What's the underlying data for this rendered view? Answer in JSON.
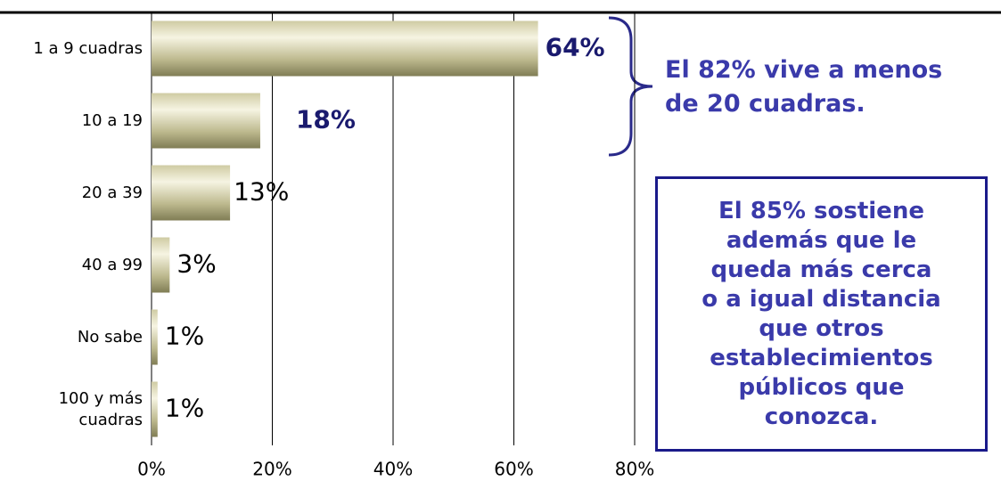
{
  "chart_data": {
    "type": "bar",
    "orientation": "horizontal",
    "categories": [
      "1 a 9 cuadras",
      "10 a 19",
      "20 a 39",
      "40 a 99",
      "No sabe",
      "100 y más cuadras"
    ],
    "values": [
      64,
      18,
      13,
      3,
      1,
      1
    ],
    "value_labels": [
      "64%",
      "18%",
      "13%",
      "3%",
      "1%",
      "1%"
    ],
    "xlim": [
      0,
      80
    ],
    "xticks": [
      {
        "value": 0,
        "label": "0%"
      },
      {
        "value": 20,
        "label": "20%"
      },
      {
        "value": 40,
        "label": "40%"
      },
      {
        "value": 60,
        "label": "60%"
      },
      {
        "value": 80,
        "label": "80%"
      }
    ],
    "grid": true,
    "annotations": [
      {
        "lines": [
          "El 82% vive a menos",
          "de 20 cuadras."
        ]
      },
      {
        "lines": [
          "El 85% sostiene",
          "además que le",
          "queda más cerca",
          "o a igual distancia",
          "que otros",
          "establecimientos",
          "públicos que",
          "conozca."
        ]
      }
    ]
  }
}
